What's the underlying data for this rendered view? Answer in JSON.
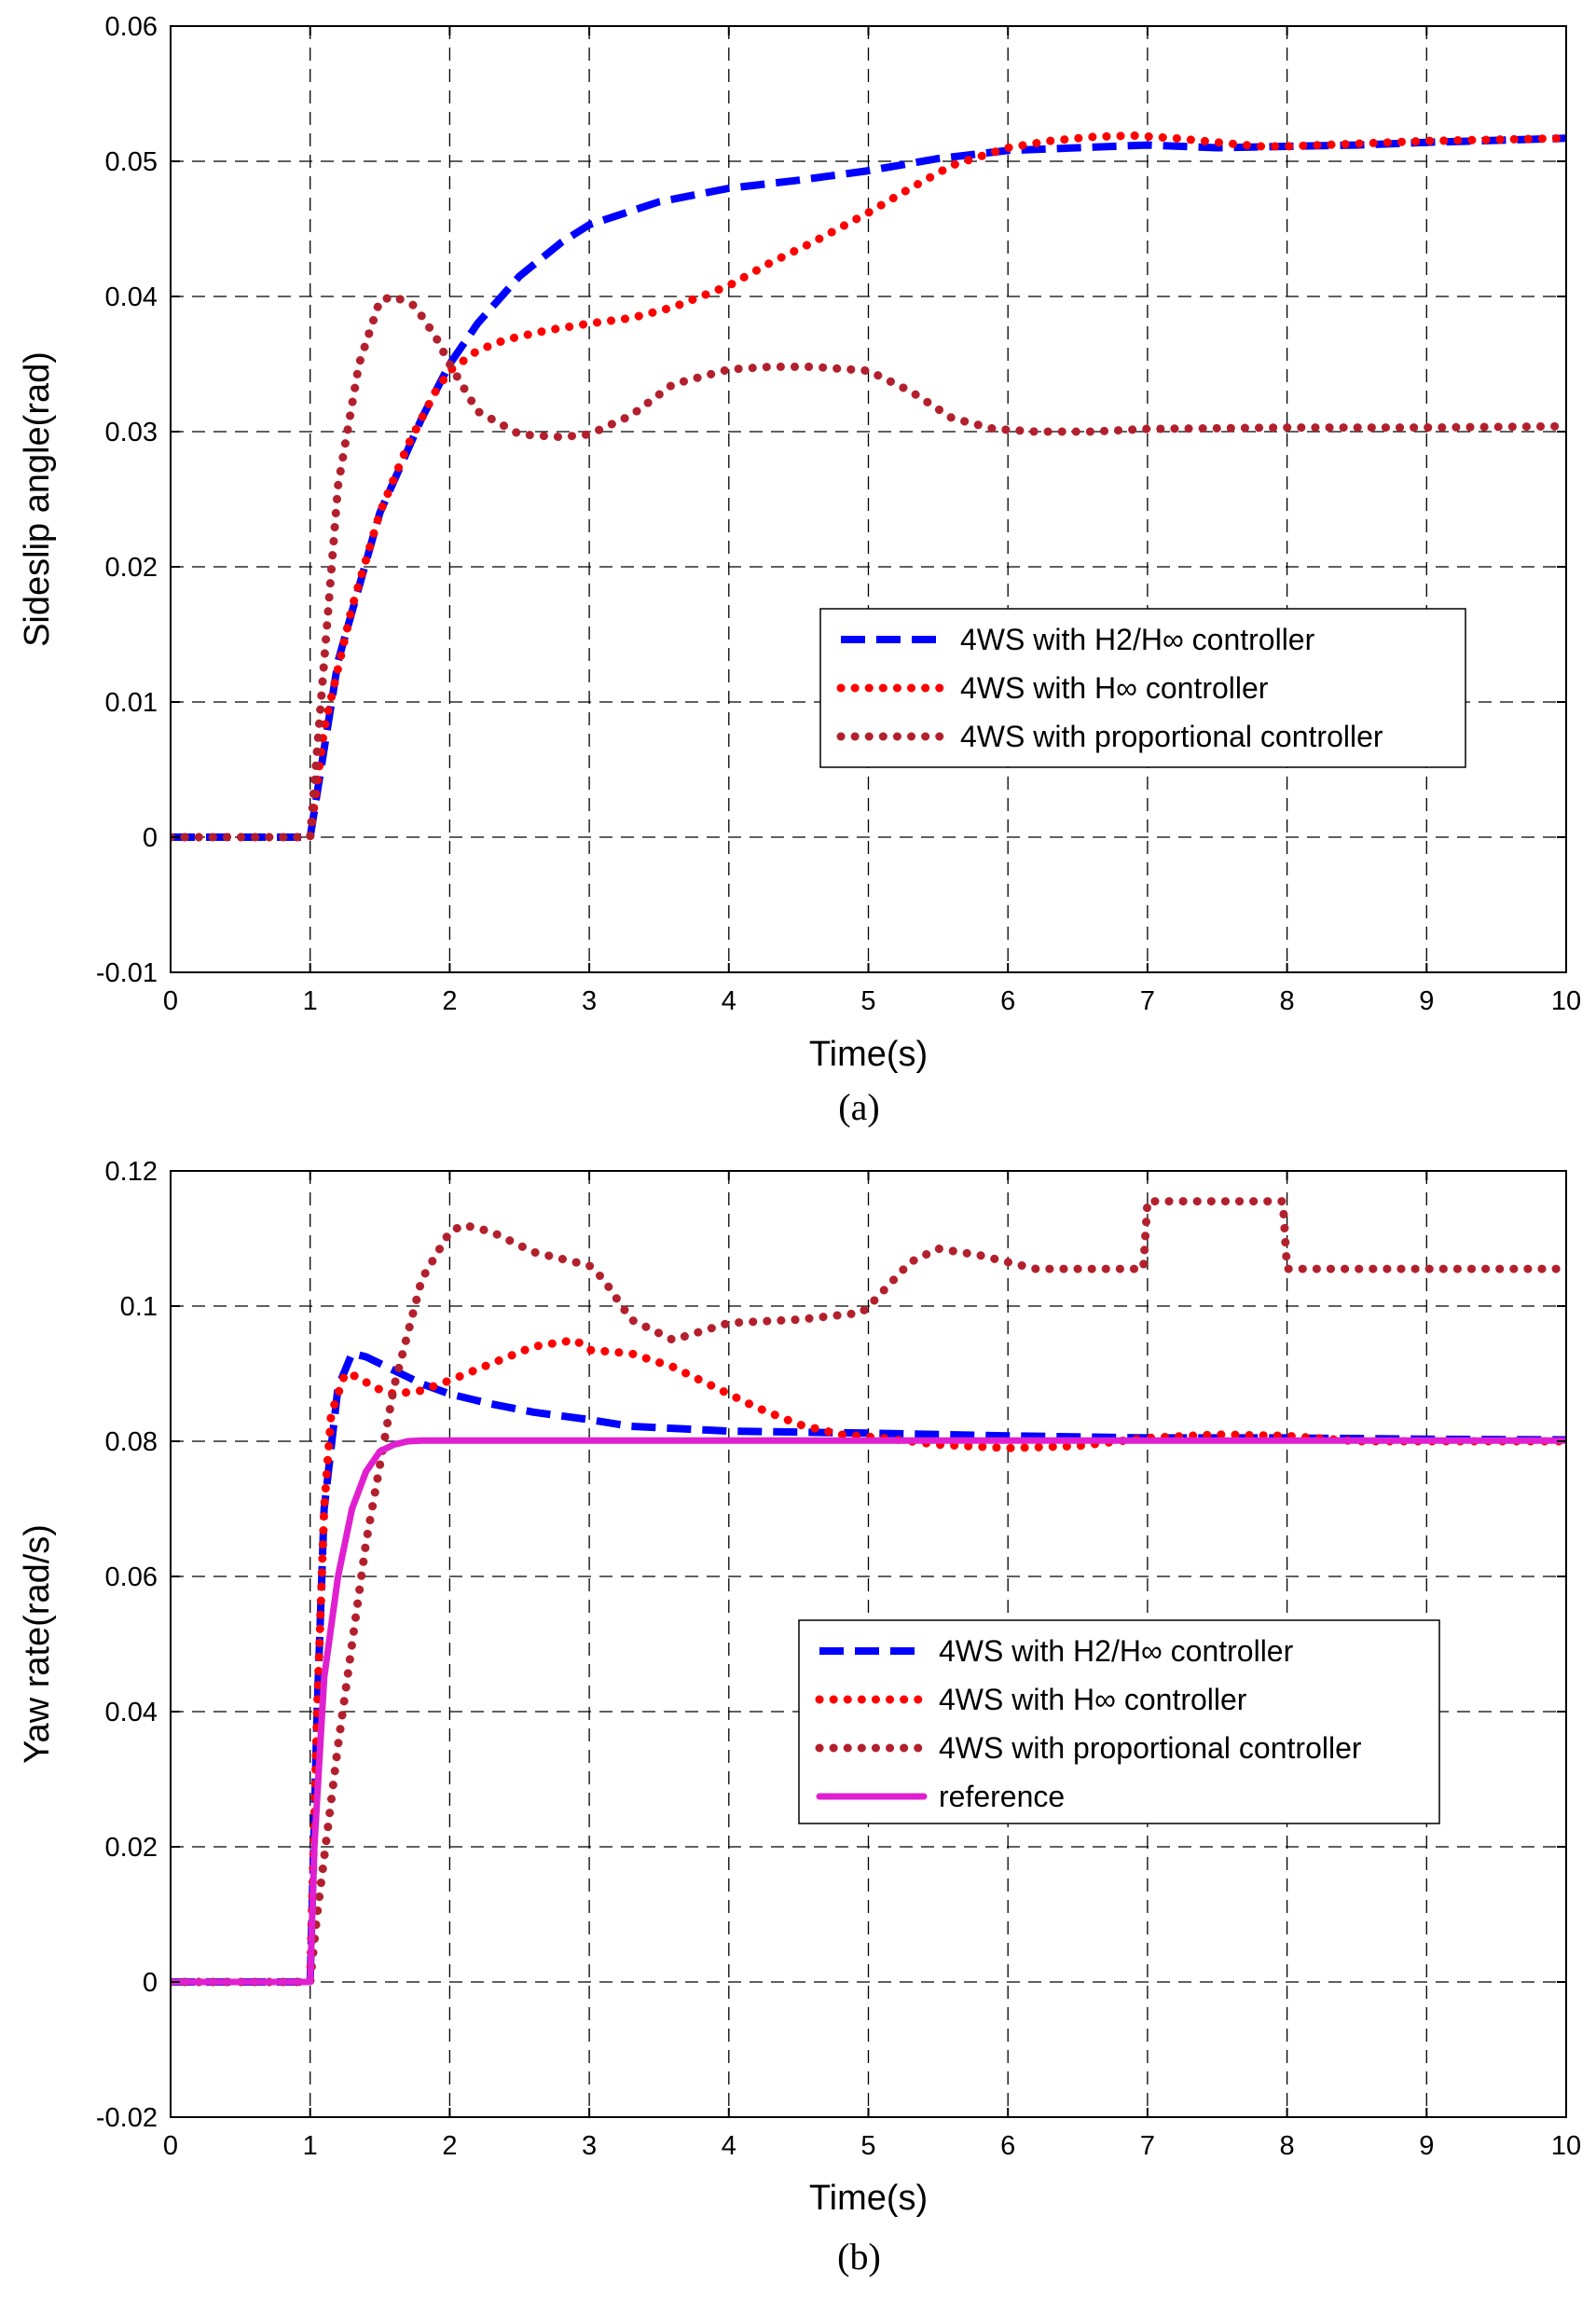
{
  "chart_data": [
    {
      "type": "line",
      "caption": "(a)",
      "xlabel": "Time(s)",
      "ylabel": "Sideslip angle(rad)",
      "xlim": [
        0,
        10
      ],
      "ylim": [
        -0.01,
        0.06
      ],
      "xticks": [
        0,
        1,
        2,
        3,
        4,
        5,
        6,
        7,
        8,
        9,
        10
      ],
      "yticks": [
        -0.01,
        0,
        0.01,
        0.02,
        0.03,
        0.04,
        0.05,
        0.06
      ],
      "ytick_labels": [
        "-0.01",
        "0",
        "0.01",
        "0.02",
        "0.03",
        "0.04",
        "0.05",
        "0.06"
      ],
      "grid": true,
      "legend_position": "center-right",
      "series": [
        {
          "name": "4WS with H2/H∞ controller",
          "color": "#0000ff",
          "style": "dash",
          "x": [
            0,
            0.5,
            1.0,
            1.2,
            1.5,
            1.8,
            2.0,
            2.2,
            2.5,
            2.8,
            3.0,
            3.5,
            4.0,
            4.5,
            5.0,
            5.5,
            6.0,
            6.5,
            7.0,
            7.5,
            8.0,
            8.5,
            9.0,
            10.0
          ],
          "y": [
            0,
            0,
            0,
            0.013,
            0.024,
            0.031,
            0.035,
            0.038,
            0.0415,
            0.044,
            0.0453,
            0.047,
            0.048,
            0.0486,
            0.0493,
            0.0502,
            0.0508,
            0.051,
            0.0512,
            0.051,
            0.0511,
            0.0512,
            0.0514,
            0.0517
          ]
        },
        {
          "name": "4WS with H∞ controller",
          "color": "#ff0000",
          "style": "dotted",
          "x": [
            0,
            0.5,
            1.0,
            1.1,
            1.3,
            1.5,
            1.7,
            1.9,
            2.0,
            2.2,
            2.4,
            2.7,
            3.0,
            3.3,
            3.6,
            4.0,
            4.3,
            4.6,
            5.0,
            5.3,
            5.6,
            6.0,
            6.3,
            6.6,
            6.9,
            7.2,
            7.5,
            7.8,
            8.0,
            8.5,
            9.0,
            10.0
          ],
          "y": [
            0,
            0,
            0,
            0.008,
            0.017,
            0.024,
            0.029,
            0.033,
            0.0345,
            0.036,
            0.0368,
            0.0375,
            0.038,
            0.0384,
            0.0392,
            0.0408,
            0.0425,
            0.044,
            0.0462,
            0.048,
            0.0497,
            0.051,
            0.0515,
            0.0518,
            0.0519,
            0.0517,
            0.0514,
            0.0511,
            0.0511,
            0.0513,
            0.0515,
            0.0517
          ]
        },
        {
          "name": "4WS with proportional controller",
          "color": "#b3202d",
          "style": "dotted",
          "x": [
            0,
            0.5,
            1.0,
            1.1,
            1.2,
            1.35,
            1.5,
            1.6,
            1.75,
            1.9,
            2.0,
            2.2,
            2.5,
            2.8,
            3.0,
            3.3,
            3.6,
            4.0,
            4.3,
            4.6,
            5.0,
            5.3,
            5.6,
            5.9,
            6.2,
            6.6,
            7.0,
            8.0,
            9.0,
            10.0
          ],
          "y": [
            0,
            0,
            0,
            0.013,
            0.026,
            0.035,
            0.0397,
            0.04,
            0.0393,
            0.037,
            0.035,
            0.0315,
            0.0298,
            0.0296,
            0.0298,
            0.0312,
            0.0335,
            0.0346,
            0.0348,
            0.0348,
            0.0345,
            0.033,
            0.031,
            0.0302,
            0.03,
            0.03,
            0.0302,
            0.0303,
            0.0303,
            0.0304
          ]
        }
      ]
    },
    {
      "type": "line",
      "caption": "(b)",
      "xlabel": "Time(s)",
      "ylabel": "Yaw rate(rad/s)",
      "xlim": [
        0,
        10
      ],
      "ylim": [
        -0.02,
        0.12
      ],
      "xticks": [
        0,
        1,
        2,
        3,
        4,
        5,
        6,
        7,
        8,
        9,
        10
      ],
      "yticks": [
        -0.02,
        0,
        0.02,
        0.04,
        0.06,
        0.08,
        0.1,
        0.12
      ],
      "ytick_labels": [
        "-0.02",
        "0",
        "0.02",
        "0.04",
        "0.06",
        "0.08",
        "0.1",
        "0.12"
      ],
      "grid": true,
      "legend_position": "center-right",
      "series": [
        {
          "name": "4WS with H2/H∞ controller",
          "color": "#0000ff",
          "style": "dash",
          "x": [
            0,
            0.5,
            1.0,
            1.05,
            1.1,
            1.2,
            1.3,
            1.4,
            1.6,
            1.8,
            2.0,
            2.3,
            2.6,
            3.0,
            3.3,
            3.7,
            4.0,
            5.0,
            6.0,
            7.0,
            8.0,
            9.0,
            10.0
          ],
          "y": [
            0,
            0,
            0,
            0.04,
            0.07,
            0.088,
            0.093,
            0.0925,
            0.0905,
            0.0885,
            0.087,
            0.0855,
            0.0843,
            0.0832,
            0.0822,
            0.0818,
            0.0815,
            0.0812,
            0.0808,
            0.0805,
            0.0805,
            0.0803,
            0.0802
          ]
        },
        {
          "name": "4WS with H∞ controller",
          "color": "#ff0000",
          "style": "dotted",
          "x": [
            0,
            0.5,
            1.0,
            1.05,
            1.1,
            1.15,
            1.25,
            1.35,
            1.45,
            1.6,
            1.8,
            2.0,
            2.3,
            2.6,
            2.9,
            3.0,
            3.3,
            3.6,
            3.9,
            4.2,
            4.5,
            4.8,
            5.1,
            5.5,
            6.0,
            6.5,
            7.0,
            7.5,
            8.0,
            8.5,
            9.0,
            10.0
          ],
          "y": [
            0,
            0,
            0,
            0.04,
            0.07,
            0.084,
            0.09,
            0.0895,
            0.088,
            0.087,
            0.0875,
            0.089,
            0.0915,
            0.094,
            0.095,
            0.0935,
            0.093,
            0.091,
            0.088,
            0.085,
            0.0825,
            0.081,
            0.0805,
            0.0795,
            0.079,
            0.0793,
            0.0805,
            0.081,
            0.0808,
            0.08,
            0.08,
            0.08
          ]
        },
        {
          "name": "4WS with proportional controller",
          "color": "#b3202d",
          "style": "dotted",
          "x": [
            0,
            0.5,
            1.0,
            1.05,
            1.2,
            1.4,
            1.6,
            1.8,
            2.0,
            2.1,
            2.3,
            2.6,
            3.0,
            3.1,
            3.3,
            3.6,
            4.0,
            4.5,
            4.95,
            5.05,
            5.3,
            5.5,
            5.8,
            6.2,
            6.6,
            6.97,
            7.0,
            7.5,
            7.97,
            8.0,
            8.5,
            9.0,
            10.0
          ],
          "y": [
            0,
            0,
            0,
            0.01,
            0.035,
            0.065,
            0.088,
            0.104,
            0.111,
            0.112,
            0.111,
            0.108,
            0.106,
            0.104,
            0.098,
            0.095,
            0.0975,
            0.098,
            0.099,
            0.101,
            0.1065,
            0.1085,
            0.1075,
            0.1055,
            0.1055,
            0.1055,
            0.1155,
            0.1155,
            0.1155,
            0.1055,
            0.1055,
            0.1055,
            0.1055
          ]
        },
        {
          "name": "reference",
          "color": "#e020d0",
          "style": "solid",
          "x": [
            0,
            0.5,
            1.0,
            1.03,
            1.1,
            1.2,
            1.3,
            1.4,
            1.5,
            1.6,
            1.7,
            1.8,
            2.0,
            3.0,
            4.0,
            5.0,
            6.0,
            7.0,
            8.0,
            9.0,
            10.0
          ],
          "y": [
            0,
            0,
            0,
            0.02,
            0.045,
            0.06,
            0.07,
            0.0755,
            0.0785,
            0.0795,
            0.08,
            0.0801,
            0.0801,
            0.0801,
            0.0801,
            0.0801,
            0.0801,
            0.0801,
            0.0801,
            0.0801,
            0.0801
          ]
        }
      ]
    }
  ]
}
